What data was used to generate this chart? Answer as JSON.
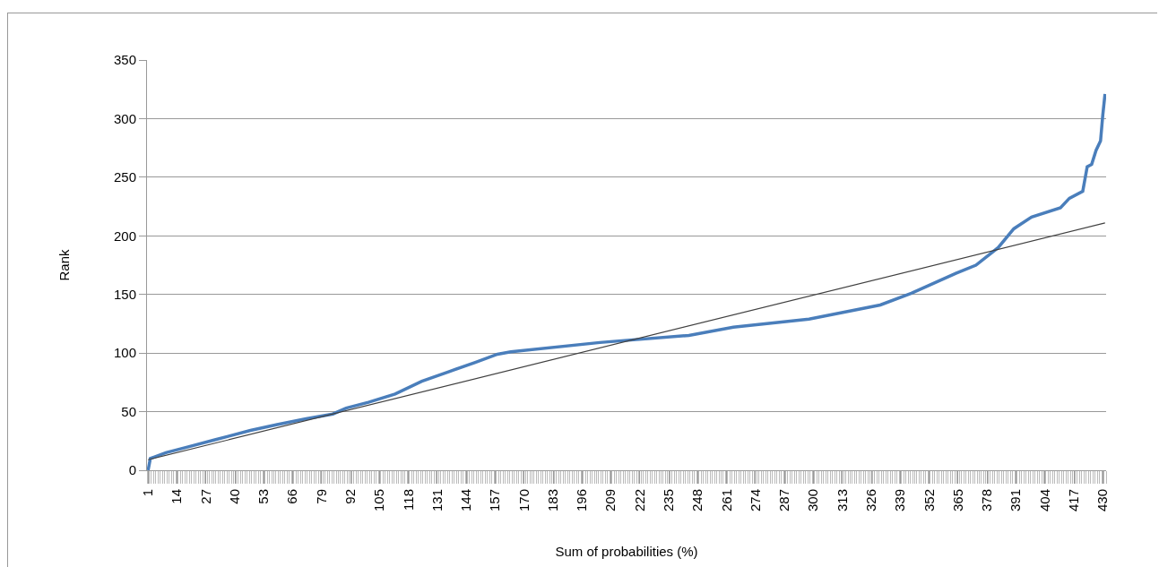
{
  "chart_data": {
    "type": "line",
    "xlabel": "Sum of probabilities (%)",
    "ylabel": "Rank",
    "xlim": [
      0.5,
      431.5
    ],
    "xticks": [
      1,
      14,
      27,
      40,
      53,
      66,
      79,
      92,
      105,
      118,
      131,
      144,
      157,
      170,
      183,
      196,
      209,
      222,
      235,
      248,
      261,
      274,
      287,
      300,
      313,
      326,
      339,
      352,
      365,
      378,
      391,
      404,
      417,
      430
    ],
    "ylim": [
      0,
      350
    ],
    "yticks": [
      0,
      50,
      100,
      150,
      200,
      250,
      300,
      350
    ],
    "grid": "y",
    "marker": "none",
    "line_style": "solid",
    "series": [
      {
        "color": "#4a7ebb",
        "x": [
          1,
          2,
          9,
          19,
          31,
          47,
          59,
          72,
          84,
          90,
          100,
          112,
          124,
          136,
          148,
          158,
          164,
          204,
          244,
          264,
          298,
          330,
          344,
          364,
          373,
          383,
          390,
          398,
          411,
          415,
          421,
          423,
          425,
          427,
          429,
          430,
          431
        ],
        "values": [
          0,
          10,
          15,
          20,
          26,
          34,
          39,
          44,
          48,
          53,
          58,
          65,
          76,
          84,
          92,
          99,
          101,
          109,
          115,
          122,
          129,
          141,
          151,
          168,
          175,
          190,
          206,
          216,
          224,
          232,
          238,
          259,
          261,
          273,
          281,
          303,
          321
        ]
      },
      {
        "type": "line",
        "color": "#404040",
        "x": [
          1,
          431
        ],
        "values": [
          9,
          211
        ]
      }
    ]
  }
}
